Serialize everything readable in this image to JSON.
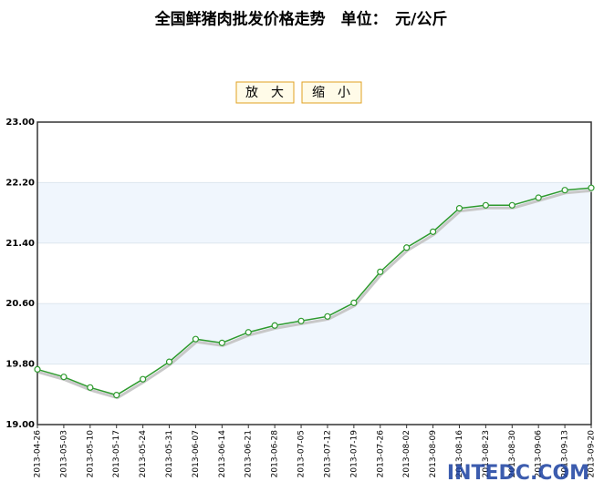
{
  "chart_data": {
    "type": "line",
    "title": "全国鲜猪肉批发价格走势　单位：　元/公斤",
    "buttons": [
      "放　大",
      "缩　小"
    ],
    "watermark": "INTEDC.COM",
    "categories": [
      "2013-04-26",
      "2013-05-03",
      "2013-05-10",
      "2013-05-17",
      "2013-05-24",
      "2013-05-31",
      "2013-06-07",
      "2013-06-14",
      "2013-06-21",
      "2013-06-28",
      "2013-07-05",
      "2013-07-12",
      "2013-07-19",
      "2013-07-26",
      "2013-08-02",
      "2013-08-09",
      "2013-08-16",
      "2013-08-23",
      "2013-08-30",
      "2013-09-06",
      "2013-09-13",
      "2013-09-20"
    ],
    "values": [
      19.73,
      19.63,
      19.49,
      19.39,
      19.6,
      19.83,
      20.13,
      20.08,
      20.22,
      20.31,
      20.37,
      20.43,
      20.61,
      21.02,
      21.34,
      21.55,
      21.86,
      21.9,
      21.9,
      22.0,
      22.1,
      22.13
    ],
    "color": "#2e9a2e",
    "ylim": [
      19,
      23
    ],
    "yticks": [
      {
        "value": 19,
        "label": "19.00"
      },
      {
        "value": 19.8,
        "label": "19.80"
      },
      {
        "value": 20.6,
        "label": "20.60"
      },
      {
        "value": 21.4,
        "label": "21.40"
      },
      {
        "value": 22.2,
        "label": "22.20"
      },
      {
        "value": 23,
        "label": "23.00"
      }
    ],
    "grid": true
  }
}
